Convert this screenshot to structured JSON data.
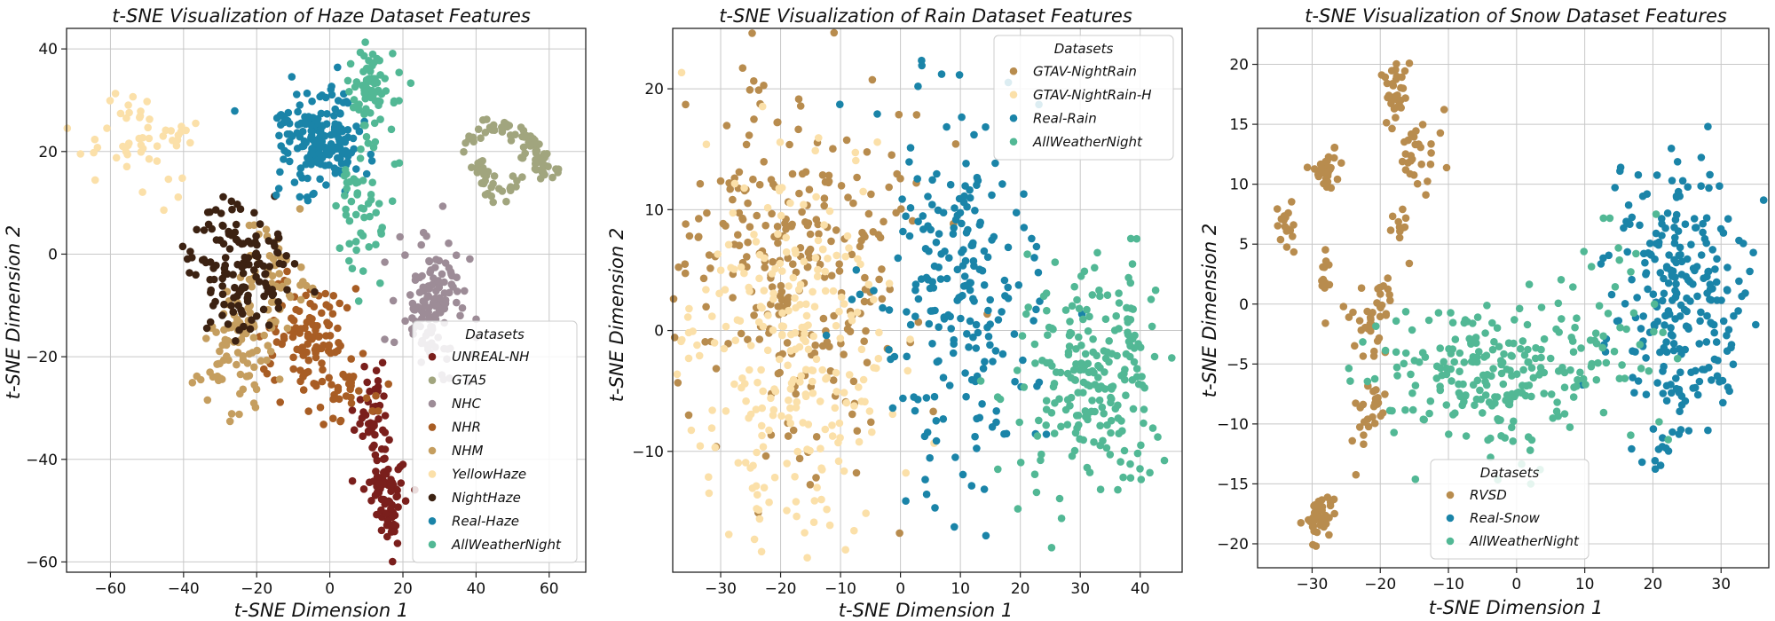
{
  "chart_data": [
    {
      "type": "scatter",
      "title": "t-SNE Visualization of Haze Dataset Features",
      "xlabel": "t-SNE Dimension 1",
      "ylabel": "t-SNE Dimension 2",
      "xlim": [
        -72,
        70
      ],
      "ylim": [
        -62,
        44
      ],
      "xticks": [
        -60,
        -40,
        -20,
        0,
        20,
        40,
        60
      ],
      "yticks": [
        -60,
        -40,
        -20,
        0,
        20,
        40
      ],
      "grid": true,
      "legend": {
        "title": "Datasets",
        "placement": "lower-right"
      },
      "series": [
        {
          "name": "UNREAL-NH",
          "color": "#7a1f1c",
          "clusters": [
            {
              "cx": 12,
              "cy": -30,
              "sx": 2,
              "sy": 4,
              "n": 40
            },
            {
              "cx": 15,
              "cy": -45,
              "sx": 3,
              "sy": 4,
              "n": 60
            },
            {
              "cx": 17,
              "cy": -52,
              "sx": 1,
              "sy": 3,
              "n": 20
            }
          ]
        },
        {
          "name": "GTA5",
          "color": "#a1a57e",
          "clusters": [
            {
              "shape": "curve",
              "x": [
                35,
                40,
                45,
                50,
                55,
                58,
                60,
                55,
                50,
                45,
                40,
                45
              ],
              "y": [
                20,
                24,
                26,
                24,
                22,
                18,
                15,
                20,
                14,
                12,
                18,
                10
              ],
              "jitter": 1.2,
              "n": 110
            }
          ]
        },
        {
          "name": "NHC",
          "color": "#9d8c97",
          "clusters": [
            {
              "cx": 28,
              "cy": -10,
              "sx": 5,
              "sy": 6,
              "n": 130
            }
          ]
        },
        {
          "name": "NHR",
          "color": "#a85d24",
          "clusters": [
            {
              "cx": -5,
              "cy": -18,
              "sx": 6,
              "sy": 6,
              "n": 120
            },
            {
              "cx": 5,
              "cy": -28,
              "sx": 4,
              "sy": 3,
              "n": 20
            }
          ]
        },
        {
          "name": "NHM",
          "color": "#c59e5f",
          "clusters": [
            {
              "cx": -25,
              "cy": -18,
              "sx": 5,
              "sy": 5,
              "n": 90
            },
            {
              "cx": -15,
              "cy": -5,
              "sx": 5,
              "sy": 6,
              "n": 50
            }
          ]
        },
        {
          "name": "YellowHaze",
          "color": "#fbe0a9",
          "clusters": [
            {
              "cx": -52,
              "cy": 22,
              "sx": 9,
              "sy": 5,
              "n": 55
            }
          ]
        },
        {
          "name": "NightHaze",
          "color": "#3c2212",
          "clusters": [
            {
              "cx": -25,
              "cy": -3,
              "sx": 7,
              "sy": 6,
              "n": 140
            }
          ]
        },
        {
          "name": "Real-Haze",
          "color": "#1a84a8",
          "clusters": [
            {
              "cx": -3,
              "cy": 22,
              "sx": 6,
              "sy": 5,
              "n": 190
            }
          ]
        },
        {
          "name": "AllWeatherNight",
          "color": "#52b895",
          "clusters": [
            {
              "cx": 11,
              "cy": 32,
              "sx": 3,
              "sy": 4,
              "n": 70
            },
            {
              "cx": 8,
              "cy": 10,
              "sx": 4,
              "sy": 8,
              "n": 55
            }
          ]
        }
      ]
    },
    {
      "type": "scatter",
      "title": "t-SNE Visualization of Rain Dataset Features",
      "xlabel": "t-SNE Dimension 1",
      "ylabel": "t-SNE Dimension 2",
      "xlim": [
        -38,
        47
      ],
      "ylim": [
        -20,
        25
      ],
      "xticks": [
        -30,
        -20,
        -10,
        0,
        10,
        20,
        30,
        40
      ],
      "yticks": [
        -10,
        0,
        10,
        20
      ],
      "grid": true,
      "legend": {
        "title": "Datasets",
        "placement": "top-right"
      },
      "series": [
        {
          "name": "GTAV-NightRain",
          "color": "#b88c4e",
          "clusters": [
            {
              "cx": -18,
              "cy": 6,
              "sx": 10,
              "sy": 8,
              "n": 280
            }
          ]
        },
        {
          "name": "GTAV-NightRain-H",
          "color": "#fbe0a9",
          "clusters": [
            {
              "cx": -18,
              "cy": -2,
              "sx": 9,
              "sy": 8,
              "n": 270
            }
          ]
        },
        {
          "name": "Real-Rain",
          "color": "#1a84a8",
          "clusters": [
            {
              "cx": 8,
              "cy": 2,
              "sx": 7,
              "sy": 9,
              "n": 230
            }
          ]
        },
        {
          "name": "AllWeatherNight",
          "color": "#52b895",
          "clusters": [
            {
              "cx": 32,
              "cy": -4,
              "sx": 7,
              "sy": 5,
              "n": 230
            }
          ]
        }
      ]
    },
    {
      "type": "scatter",
      "title": "t-SNE Visualization of Snow Dataset Features",
      "xlabel": "t-SNE Dimension 1",
      "ylabel": "t-SNE Dimension 2",
      "xlim": [
        -38,
        37
      ],
      "ylim": [
        -22,
        23
      ],
      "xticks": [
        -30,
        -20,
        -10,
        0,
        10,
        20,
        30
      ],
      "yticks": [
        -20,
        -15,
        -10,
        -5,
        0,
        5,
        10,
        15,
        20
      ],
      "grid": true,
      "legend": {
        "title": "Datasets",
        "placement": "lower-center"
      },
      "series": [
        {
          "name": "RVSD",
          "color": "#b88c4e",
          "clusters": [
            {
              "cx": -34,
              "cy": 6.5,
              "sx": 0.8,
              "sy": 0.8,
              "n": 18
            },
            {
              "cx": -28,
              "cy": 11,
              "sx": 1.2,
              "sy": 1,
              "n": 30
            },
            {
              "cx": -18,
              "cy": 18,
              "sx": 1,
              "sy": 1.5,
              "n": 30
            },
            {
              "cx": -15,
              "cy": 12,
              "sx": 2,
              "sy": 2.5,
              "n": 30
            },
            {
              "cx": -28,
              "cy": 2.5,
              "sx": 0.6,
              "sy": 1,
              "n": 12
            },
            {
              "cx": -21,
              "cy": -1,
              "sx": 1.5,
              "sy": 2,
              "n": 40
            },
            {
              "cx": -22,
              "cy": -9.5,
              "sx": 1.5,
              "sy": 1.5,
              "n": 25
            },
            {
              "cx": -29,
              "cy": -18,
              "sx": 1,
              "sy": 1.2,
              "n": 40
            },
            {
              "cx": -17,
              "cy": 7,
              "sx": 0.7,
              "sy": 0.8,
              "n": 10
            }
          ]
        },
        {
          "name": "Real-Snow",
          "color": "#1a84a8",
          "clusters": [
            {
              "cx": 24,
              "cy": 0,
              "sx": 5,
              "sy": 6,
              "n": 260
            }
          ]
        },
        {
          "name": "AllWeatherNight",
          "color": "#52b895",
          "clusters": [
            {
              "cx": -2,
              "cy": -6,
              "sx": 9,
              "sy": 3,
              "n": 230
            },
            {
              "cx": 14,
              "cy": 0,
              "sx": 4,
              "sy": 4,
              "n": 30
            }
          ]
        }
      ]
    }
  ]
}
